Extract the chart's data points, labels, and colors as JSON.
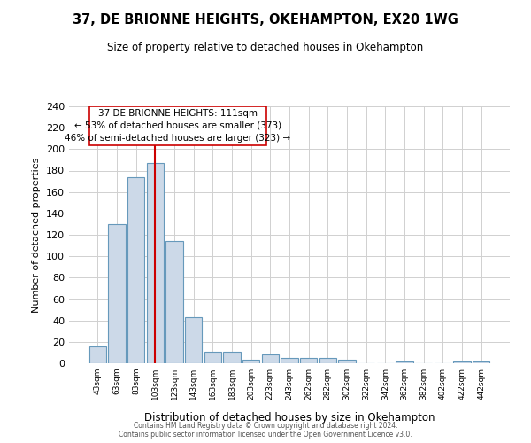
{
  "title": "37, DE BRIONNE HEIGHTS, OKEHAMPTON, EX20 1WG",
  "subtitle": "Size of property relative to detached houses in Okehampton",
  "xlabel": "Distribution of detached houses by size in Okehampton",
  "ylabel": "Number of detached properties",
  "bar_labels": [
    "43sqm",
    "63sqm",
    "83sqm",
    "103sqm",
    "123sqm",
    "143sqm",
    "163sqm",
    "183sqm",
    "203sqm",
    "223sqm",
    "243sqm",
    "262sqm",
    "282sqm",
    "302sqm",
    "322sqm",
    "342sqm",
    "362sqm",
    "382sqm",
    "402sqm",
    "422sqm",
    "442sqm"
  ],
  "bar_values": [
    16,
    130,
    174,
    187,
    114,
    43,
    11,
    11,
    3,
    8,
    5,
    5,
    5,
    3,
    0,
    0,
    2,
    0,
    0,
    2,
    2
  ],
  "bar_color": "#ccd9e8",
  "bar_edge_color": "#6699bb",
  "background_color": "#ffffff",
  "grid_color": "#d0d0d0",
  "vline_color": "#cc0000",
  "annotation_line1": "37 DE BRIONNE HEIGHTS: 111sqm",
  "annotation_line2": "← 53% of detached houses are smaller (373)",
  "annotation_line3": "46% of semi-detached houses are larger (323) →",
  "annotation_box_color": "#ffffff",
  "annotation_box_edge": "#cc0000",
  "ylim": [
    0,
    240
  ],
  "yticks": [
    0,
    20,
    40,
    60,
    80,
    100,
    120,
    140,
    160,
    180,
    200,
    220,
    240
  ],
  "footer1": "Contains HM Land Registry data © Crown copyright and database right 2024.",
  "footer2": "Contains public sector information licensed under the Open Government Licence v3.0."
}
